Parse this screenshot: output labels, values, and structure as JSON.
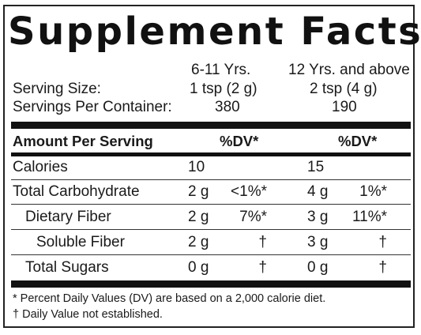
{
  "title": "Supplement Facts",
  "columns": {
    "group1": "6-11 Yrs.",
    "group2": "12 Yrs. and above"
  },
  "serving_size": {
    "label": "Serving Size:",
    "group1": "1 tsp (2 g)",
    "group2": "2 tsp (4 g)"
  },
  "servings_per_container": {
    "label": "Servings Per Container:",
    "group1": "380",
    "group2": "190"
  },
  "header_row": {
    "label": "Amount Per Serving",
    "dv1": "%DV*",
    "dv2": "%DV*"
  },
  "rows": [
    {
      "name": "Calories",
      "amount1": "10",
      "dv1": "",
      "amount2": "15",
      "dv2": ""
    },
    {
      "name": "Total Carbohydrate",
      "amount1": "2 g",
      "dv1": "<1%*",
      "amount2": "4 g",
      "dv2": "1%*"
    },
    {
      "name": "Dietary Fiber",
      "amount1": "2 g",
      "dv1": "7%*",
      "amount2": "3 g",
      "dv2": "11%*"
    },
    {
      "name": "Soluble Fiber",
      "amount1": "2 g",
      "dv1": "†",
      "amount2": "3 g",
      "dv2": "†"
    },
    {
      "name": "Total Sugars",
      "amount1": "0 g",
      "dv1": "†",
      "amount2": "0 g",
      "dv2": "†"
    }
  ],
  "footnotes": {
    "dv_note": "* Percent Daily Values (DV) are based on a 2,000 calorie diet.",
    "dagger_note": "† Daily Value not established."
  }
}
